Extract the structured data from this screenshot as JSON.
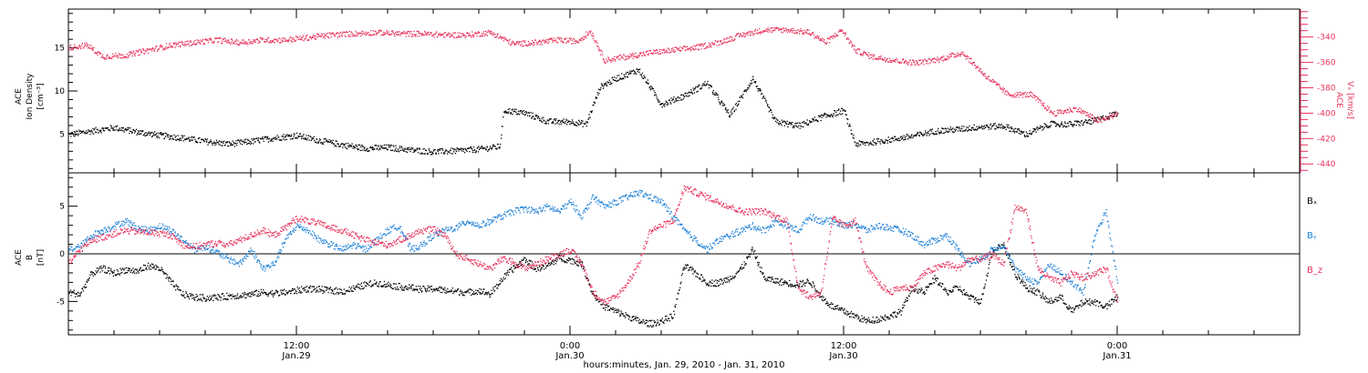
{
  "colors": {
    "black_series": "#000000",
    "pink_series": "#e8325c",
    "blue_series": "#1f82d8",
    "axis": "#000000"
  },
  "x_axis": {
    "ticks": [
      {
        "time": "12:00",
        "date": "Jan.29",
        "hours": 12
      },
      {
        "time": "0:00",
        "date": "Jan.30",
        "hours": 24
      },
      {
        "time": "12:00",
        "date": "Jan.30",
        "hours": 36
      },
      {
        "time": "0:00",
        "date": "Jan.31",
        "hours": 48
      }
    ],
    "xlabel": "hours:minutes, Jan. 29, 2010 - Jan. 31, 2010",
    "range_hours": [
      2,
      56
    ]
  },
  "panel_top": {
    "left_label": [
      "ACE",
      "Ion Density",
      "[cm⁻³]"
    ],
    "right_label": [
      "ACE",
      "Vₓ [km/s]"
    ],
    "left_ticks": [
      5,
      10,
      15
    ],
    "right_ticks": [
      -340,
      -360,
      -380,
      -400,
      -420,
      -440
    ],
    "left_range": [
      0.5,
      19.5
    ],
    "right_range": [
      -447,
      -318
    ]
  },
  "panel_bottom": {
    "left_label": [
      "ACE",
      "B",
      "[nT]"
    ],
    "left_ticks": [
      -5,
      0,
      5
    ],
    "left_range": [
      -8.5,
      8.5
    ],
    "legend": [
      {
        "label": "Bₓ",
        "color": "#000000"
      },
      {
        "label": "Bᵧ",
        "color": "#1f82d8"
      },
      {
        "label": "B_z",
        "color": "#e8325c"
      }
    ]
  },
  "chart_data": [
    {
      "type": "scatter",
      "panel": "top",
      "xunit": "hours since Jan. 29, 2010 00:00",
      "series": [
        {
          "axis": "left",
          "color": "#000000",
          "x": [
            2,
            3,
            4,
            5,
            6,
            7,
            8,
            9,
            10,
            11,
            12,
            13,
            14,
            15,
            16,
            17,
            18,
            19,
            20,
            20.9,
            21.1,
            22,
            23,
            24,
            24.7,
            25.3,
            26,
            27,
            28,
            29,
            30,
            31,
            32,
            33,
            34,
            35,
            36,
            36.5,
            37,
            38,
            39,
            40,
            41,
            42,
            43,
            44,
            45,
            46,
            47,
            48
          ],
          "y": [
            5.0,
            5.4,
            5.8,
            5.3,
            4.9,
            4.6,
            4.2,
            3.9,
            4.2,
            4.6,
            4.9,
            4.3,
            3.8,
            3.4,
            3.5,
            3.2,
            3.0,
            3.1,
            3.3,
            3.6,
            7.8,
            7.5,
            6.5,
            6.5,
            6.2,
            10.5,
            11.5,
            12.5,
            8.5,
            9.5,
            11.0,
            7.2,
            11.5,
            6.5,
            6.0,
            7.0,
            7.8,
            3.9,
            4.0,
            4.4,
            4.8,
            5.4,
            5.6,
            5.9,
            6.0,
            5.0,
            6.2,
            6.2,
            6.6,
            7.5
          ]
        },
        {
          "axis": "right",
          "color": "#e8325c",
          "x": [
            2,
            2.8,
            3.5,
            4.5,
            5.5,
            6.5,
            7.5,
            8.5,
            9.5,
            10.5,
            11.5,
            12.5,
            13.5,
            14.5,
            15.5,
            16.5,
            17.5,
            18.5,
            19.5,
            20.5,
            21.5,
            22.5,
            23.5,
            24.3,
            24.9,
            25.5,
            26.5,
            27.5,
            28.5,
            29.5,
            30.5,
            31.5,
            32.5,
            33.5,
            34.5,
            35.2,
            35.9,
            36.5,
            37.2,
            38.2,
            39.2,
            40.2,
            41.2,
            42.2,
            43.2,
            44.2,
            45.2,
            46.2,
            47.2,
            48
          ],
          "y": [
            -348,
            -346,
            -355,
            -354,
            -350,
            -346,
            -344,
            -342,
            -344,
            -342,
            -342,
            -340,
            -338,
            -337,
            -336,
            -337,
            -337,
            -338,
            -338,
            -336,
            -345,
            -344,
            -342,
            -343,
            -335,
            -358,
            -355,
            -352,
            -350,
            -348,
            -344,
            -338,
            -334,
            -334,
            -336,
            -344,
            -334,
            -350,
            -355,
            -358,
            -360,
            -357,
            -352,
            -370,
            -385,
            -385,
            -400,
            -396,
            -406,
            -400
          ]
        }
      ]
    },
    {
      "type": "scatter",
      "panel": "bottom",
      "xunit": "hours since Jan. 29, 2010 00:00",
      "series": [
        {
          "name": "Bₓ",
          "color": "#000000",
          "x": [
            2,
            2.5,
            3,
            3.5,
            4,
            4.5,
            5,
            5.5,
            6,
            6.5,
            7,
            7.5,
            8,
            8.5,
            9,
            9.5,
            10,
            10.5,
            11,
            11.5,
            12,
            12.5,
            13,
            13.5,
            14,
            14.5,
            15,
            15.5,
            16,
            16.5,
            17,
            17.5,
            18,
            18.5,
            19,
            19.5,
            20,
            20.5,
            21,
            21.5,
            22,
            22.5,
            23,
            23.5,
            24,
            24.5,
            25,
            25.5,
            26,
            26.5,
            27,
            27.5,
            28,
            28.5,
            29,
            29.5,
            30,
            30.5,
            31,
            31.5,
            32,
            32.5,
            33,
            33.5,
            34,
            34.5,
            35,
            35.5,
            36,
            36.5,
            37,
            37.5,
            38,
            38.5,
            39,
            39.5,
            40,
            40.5,
            41,
            41.5,
            42,
            42.5,
            43,
            43.5,
            44,
            44.5,
            45,
            45.5,
            46,
            46.5,
            47,
            47.5,
            48
          ],
          "y": [
            -4.0,
            -4.2,
            -2,
            -1.5,
            -2,
            -1.6,
            -1.8,
            -1.2,
            -1.5,
            -3,
            -4.2,
            -4.5,
            -4.6,
            -4.5,
            -4.4,
            -4.3,
            -4.2,
            -4.0,
            -4.1,
            -4.0,
            -3.8,
            -3.6,
            -3.7,
            -3.8,
            -3.9,
            -3.6,
            -3.2,
            -3.0,
            -3.2,
            -3.4,
            -3.5,
            -3.7,
            -3.6,
            -3.8,
            -3.9,
            -4.0,
            -3.8,
            -4.2,
            -2.6,
            -1.5,
            -0.5,
            -1.5,
            -1.2,
            -0.4,
            -0.6,
            -1,
            -4.2,
            -5.5,
            -6.0,
            -6.5,
            -7.0,
            -7.3,
            -7.0,
            -6.5,
            -1.2,
            -2.0,
            -3.0,
            -3.0,
            -2.5,
            -1.5,
            0.5,
            -2.5,
            -2.8,
            -3.0,
            -3.2,
            -2.8,
            -4.5,
            -5.5,
            -6.0,
            -6.5,
            -7.0,
            -6.8,
            -6.5,
            -6.0,
            -3.5,
            -4.0,
            -2.5,
            -4.0,
            -3.5,
            -4.5,
            -5.0,
            0.5,
            1.0,
            -2.0,
            -3.5,
            -4.0,
            -5.0,
            -4.5,
            -6.0,
            -5.0,
            -5.0,
            -5.5,
            -4.5
          ]
        },
        {
          "name": "Bᵧ",
          "color": "#1f82d8",
          "x": [
            2,
            2.5,
            3,
            3.5,
            4,
            4.5,
            5,
            5.5,
            6,
            6.5,
            7,
            7.5,
            8,
            8.5,
            9,
            9.5,
            10,
            10.5,
            11,
            11.5,
            12,
            12.5,
            13,
            13.5,
            14,
            14.5,
            15,
            15.5,
            16,
            16.5,
            17,
            17.5,
            18,
            18.5,
            19,
            19.5,
            20,
            20.5,
            21,
            21.5,
            22,
            22.5,
            23,
            23.5,
            24,
            24.5,
            25,
            25.5,
            26,
            26.5,
            27,
            27.5,
            28,
            28.5,
            29,
            29.5,
            30,
            30.5,
            31,
            31.5,
            32,
            32.5,
            33,
            33.5,
            34,
            34.5,
            35,
            35.5,
            36,
            36.5,
            37,
            37.5,
            38,
            38.5,
            39,
            39.5,
            40,
            40.5,
            41,
            41.5,
            42,
            42.5,
            43,
            43.5,
            44,
            44.5,
            45,
            45.5,
            46,
            46.5,
            47,
            47.5,
            48
          ],
          "y": [
            0.5,
            0.8,
            2.0,
            2.5,
            3.0,
            3.5,
            2.8,
            2.5,
            3.0,
            2.5,
            1.5,
            0.5,
            0.8,
            0.2,
            -0.5,
            -1.0,
            0.5,
            -1.5,
            -1.0,
            1.5,
            3.0,
            2.5,
            1.5,
            1.0,
            0.5,
            1.0,
            0.5,
            1.5,
            2.5,
            3.0,
            0.5,
            1.0,
            2.0,
            2.5,
            2.8,
            3.5,
            3.0,
            3.5,
            4.0,
            4.5,
            4.8,
            4.5,
            5.0,
            4.5,
            5.5,
            4.0,
            6.0,
            5.0,
            5.5,
            6.0,
            6.5,
            6.0,
            5.5,
            4.0,
            2.5,
            1.5,
            0.5,
            1.5,
            2.0,
            2.5,
            3.0,
            2.5,
            3.5,
            3.0,
            2.5,
            4.0,
            3.5,
            3.5,
            3.0,
            3.2,
            2.5,
            3.0,
            2.8,
            2.5,
            2.0,
            1.0,
            1.5,
            2.0,
            0.5,
            -1.0,
            -0.5,
            0.5,
            1.0,
            -1.5,
            -2.5,
            -3.0,
            -1.0,
            -2.0,
            -3.0,
            -4.0,
            2.0,
            4.5,
            -3.0
          ]
        },
        {
          "name": "B_z",
          "color": "#e8325c",
          "x": [
            2,
            2.5,
            3,
            3.5,
            4,
            4.5,
            5,
            5.5,
            6,
            6.5,
            7,
            7.5,
            8,
            8.5,
            9,
            9.5,
            10,
            10.5,
            11,
            11.5,
            12,
            12.5,
            13,
            13.5,
            14,
            14.5,
            15,
            15.5,
            16,
            16.5,
            17,
            17.5,
            18,
            18.5,
            19,
            19.5,
            20,
            20.5,
            21,
            21.5,
            22,
            22.5,
            23,
            23.5,
            24,
            24.5,
            25,
            25.5,
            26,
            26.5,
            27,
            27.5,
            28,
            28.5,
            29,
            29.5,
            30,
            30.5,
            31,
            31.5,
            32,
            32.5,
            33,
            33.5,
            34,
            34.5,
            35,
            35.5,
            36,
            36.5,
            37,
            37.5,
            38,
            38.5,
            39,
            39.5,
            40,
            40.5,
            41,
            41.5,
            42,
            42.5,
            43,
            43.5,
            44,
            44.5,
            45,
            45.5,
            46,
            46.5,
            47,
            47.5,
            48
          ],
          "y": [
            -1.0,
            0.5,
            1.5,
            1.8,
            2.2,
            2.5,
            2.4,
            2.3,
            2.2,
            2.0,
            1.0,
            0.8,
            1.0,
            1.2,
            1.0,
            1.5,
            2.0,
            2.5,
            2.0,
            2.8,
            3.8,
            3.5,
            3.2,
            2.8,
            2.5,
            2.0,
            1.5,
            1.2,
            1.0,
            1.5,
            2.0,
            2.5,
            2.6,
            2.0,
            0.0,
            -0.5,
            -1.0,
            -1.5,
            -0.5,
            -0.8,
            -1.5,
            -1.0,
            -0.5,
            0.0,
            0.5,
            -1.0,
            -4.0,
            -5.0,
            -4.5,
            -3.0,
            -1.0,
            2.5,
            3.0,
            3.5,
            7.0,
            6.5,
            6.0,
            5.5,
            5.0,
            4.5,
            4.5,
            4.5,
            4.0,
            3.5,
            -3.5,
            -4.5,
            -4.0,
            3.8,
            3.0,
            3.5,
            -1.5,
            -3.0,
            -4.0,
            -3.5,
            -3.5,
            -2.0,
            -1.5,
            -1.0,
            -1.5,
            -0.5,
            -0.5,
            0.0,
            -1.0,
            5.0,
            4.5,
            -1.5,
            -2.5,
            -3.0,
            -2.0,
            -2.5,
            -2.0,
            -1.5,
            -5.0
          ]
        }
      ]
    }
  ]
}
